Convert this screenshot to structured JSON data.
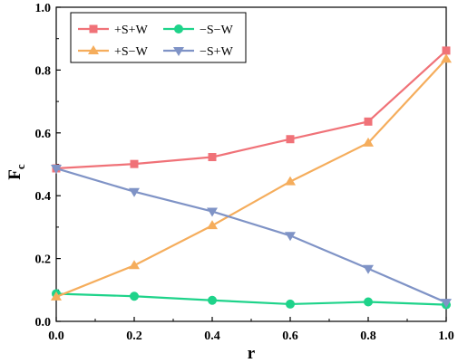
{
  "chart_data": {
    "type": "line",
    "title": "",
    "xlabel": "r",
    "ylabel_main": "F",
    "ylabel_sub": "c",
    "xlim": [
      0.0,
      1.0
    ],
    "ylim": [
      0.0,
      1.0
    ],
    "xticks": [
      "0.0",
      "0.2",
      "0.4",
      "0.6",
      "0.8",
      "1.0"
    ],
    "yticks": [
      "0.0",
      "0.2",
      "0.4",
      "0.6",
      "0.8",
      "1.0"
    ],
    "grid": false,
    "legend_position": "top-left",
    "x": [
      0.0,
      0.2,
      0.4,
      0.6,
      0.8,
      1.0
    ],
    "series": [
      {
        "name": "+S+W",
        "color": "#f07278",
        "marker": "square",
        "values": [
          0.487,
          0.501,
          0.523,
          0.58,
          0.636,
          0.862
        ]
      },
      {
        "name": "−S−W",
        "color": "#1ed38a",
        "marker": "circle",
        "values": [
          0.088,
          0.08,
          0.067,
          0.055,
          0.062,
          0.053
        ]
      },
      {
        "name": "+S−W",
        "color": "#f5ad5c",
        "marker": "triangle-up",
        "values": [
          0.078,
          0.178,
          0.305,
          0.445,
          0.568,
          0.835
        ]
      },
      {
        "name": "−S+W",
        "color": "#7f93c6",
        "marker": "triangle-down",
        "values": [
          0.487,
          0.413,
          0.35,
          0.273,
          0.168,
          0.06
        ]
      }
    ]
  }
}
